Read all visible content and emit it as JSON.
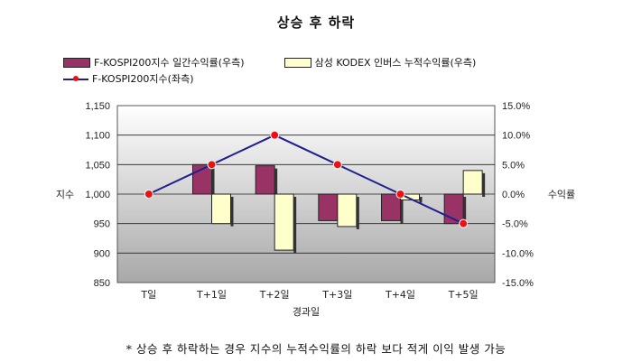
{
  "chart_data": {
    "type": "bar+line",
    "title": "상승 후 하락",
    "categories": [
      "T일",
      "T+1일",
      "T+2일",
      "T+3일",
      "T+4일",
      "T+5일"
    ],
    "xlabel": "경과일",
    "ylabel_left": "지수",
    "ylabel_right": "수익률",
    "left_axis": {
      "min": 850,
      "max": 1150,
      "ticks": [
        "850",
        "900",
        "950",
        "1,000",
        "1,050",
        "1,100",
        "1,150"
      ]
    },
    "right_axis": {
      "min": -15.0,
      "max": 15.0,
      "ticks": [
        "-15.0%",
        "-10.0%",
        "-5.0%",
        "0.0%",
        "5.0%",
        "10.0%",
        "15.0%"
      ]
    },
    "grid": true,
    "legend_position": "top",
    "series": [
      {
        "name": "F-KOSPI200지수 일간수익률(우측)",
        "type": "bar",
        "axis": "right",
        "color": "#993366",
        "values": [
          0.0,
          5.0,
          4.8,
          -4.5,
          -4.5,
          -5.0
        ]
      },
      {
        "name": "삼성 KODEX 인버스 누적수익률(우측)",
        "type": "bar",
        "axis": "right",
        "color": "#ffffcc",
        "values": [
          0.0,
          -5.0,
          -9.5,
          -5.5,
          -1.0,
          4.0
        ]
      },
      {
        "name": "F-KOSPI200지수(좌측)",
        "type": "line",
        "axis": "left",
        "color": "#1f1f8f",
        "marker_color": "#ee1111",
        "values": [
          1000,
          1050,
          1100,
          1050,
          1000,
          950
        ]
      }
    ]
  },
  "footnote": "* 상승 후 하락하는 경우 지수의 누적수익률의 하락 보다 적게 이익 발생 가능"
}
